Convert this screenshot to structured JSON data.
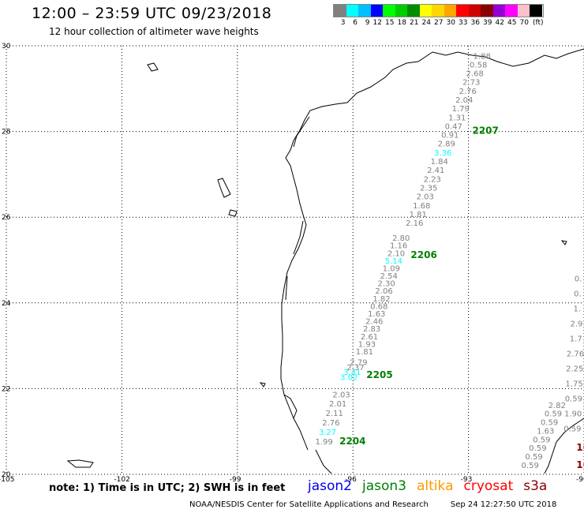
{
  "header": {
    "title": "12:00 – 23:59 UTC 09/23/2018",
    "subtitle": "12 hour collection of altimeter wave heights"
  },
  "scale": {
    "colors": [
      "#808080",
      "#00ffff",
      "#00bfff",
      "#0000ff",
      "#00ff00",
      "#00cd00",
      "#008b00",
      "#ffff00",
      "#ffd700",
      "#ffa500",
      "#ff0000",
      "#cd0000",
      "#8b0000",
      "#9400d3",
      "#ff00ff",
      "#ffc0cb",
      "#000000"
    ],
    "labels": [
      "3",
      "6",
      "9",
      "12",
      "15",
      "18",
      "21",
      "24",
      "27",
      "30",
      "33",
      "36",
      "39",
      "42",
      "45",
      "70"
    ],
    "unit": "(ft)"
  },
  "map": {
    "lat_labels": [
      "30",
      "28",
      "26",
      "24",
      "22",
      "20"
    ],
    "lon_labels": [
      "-105",
      "-102",
      "-99",
      "-96",
      "-93",
      "-90"
    ],
    "lon_range": [
      -105,
      -90
    ],
    "lat_range": [
      20,
      30
    ]
  },
  "tracks": [
    {
      "id": "2207",
      "color": "#008000",
      "label_lon": -92.9,
      "label_lat": 27.95,
      "start_lon": -92.65,
      "start_lat": 29.7,
      "end_lon": -94.4,
      "end_lat": 25.8,
      "values": [
        "1.88",
        "0.58",
        "2.68",
        "2.73",
        "2.76",
        "2.04",
        "1.79",
        "1.31",
        "0.47",
        "0.91",
        "2.89",
        "3.36",
        "1.84",
        "2.41",
        "2.23",
        "2.35",
        "2.03",
        "1.68",
        "1.81",
        "2.16"
      ]
    },
    {
      "id": "2206",
      "color": "#008000",
      "label_lon": -94.5,
      "label_lat": 25.05,
      "start_lon": -94.75,
      "start_lat": 25.45,
      "end_lon": -95.7,
      "end_lat": 22.8,
      "values": [
        "2.80",
        "1.16",
        "2.10",
        "5.14",
        "1.09",
        "2.54",
        "2.30",
        "2.06",
        "1.82",
        "0.68",
        "1.63",
        "2.46",
        "2.83",
        "2.61",
        "1.93",
        "1.81"
      ]
    },
    {
      "id": "2205",
      "color": "#008000",
      "label_lon": -95.65,
      "label_lat": 22.25,
      "start_lon": -95.85,
      "start_lat": 22.55,
      "end_lon": -96.1,
      "end_lat": 22.2,
      "values": [
        "2.79",
        "2.37",
        "3.41",
        "3.02"
      ]
    },
    {
      "id": "2204",
      "color": "#008000",
      "label_lon": -96.35,
      "label_lat": 20.7,
      "start_lon": -96.3,
      "start_lat": 21.8,
      "end_lon": -96.75,
      "end_lat": 20.7,
      "values": [
        "2.03",
        "2.01",
        "2.11",
        "2.76",
        "3.27",
        "1.99"
      ]
    },
    {
      "id": "16",
      "color": "#8b0000",
      "label_lon": -90.2,
      "label_lat": 20.55,
      "start_lon": -90.15,
      "start_lat": 24.5,
      "end_lon": -90.3,
      "end_lat": 21.0,
      "values": [
        "0.",
        "0.",
        "1.",
        "2.9",
        "1.7",
        "2.76",
        "2.25",
        "1.75",
        "0.59",
        "1.90",
        "0.59"
      ]
    },
    {
      "id": "16",
      "color": "#8b0000",
      "label_lon": -90.2,
      "label_lat": 20.15,
      "start_lon": -90.7,
      "start_lat": 21.55,
      "end_lon": -91.4,
      "end_lat": 20.15,
      "values": [
        "2.82",
        "0.59",
        "0.59",
        "1.63",
        "0.59",
        "0.59",
        "0.59",
        "0.59"
      ]
    }
  ],
  "notes": {
    "text": "note:  1)  Time is in UTC;  2)  SWH is in feet",
    "satellites": [
      {
        "name": "jason2",
        "color": "#0000ee"
      },
      {
        "name": "jason3",
        "color": "#008000"
      },
      {
        "name": "altika",
        "color": "#ff9900"
      },
      {
        "name": "cryosat",
        "color": "#ff0000"
      },
      {
        "name": "s3a",
        "color": "#8b0000"
      }
    ]
  },
  "footer": {
    "credit": "NOAA/NESDIS Center for Satellite Applications and Research",
    "timestamp": "Sep 24 12:27:50 UTC 2018"
  }
}
